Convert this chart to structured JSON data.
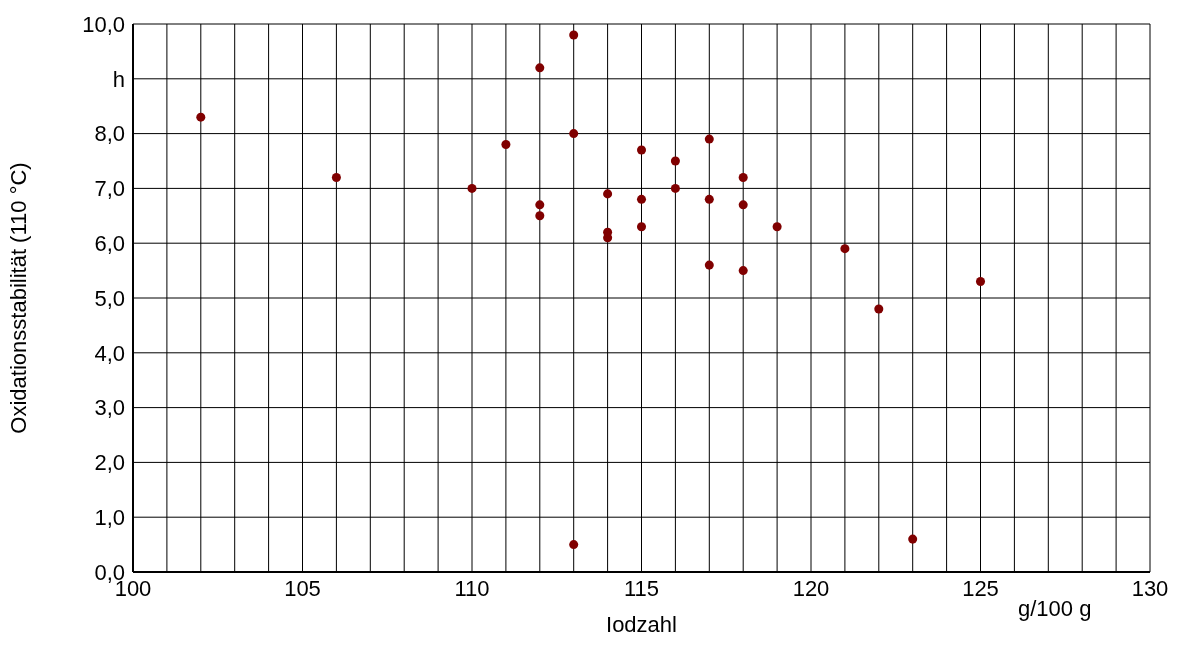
{
  "chart_data": {
    "type": "scatter",
    "xlabel": "Iodzahl",
    "ylabel": "Oxidationsstabilität (110 °C)",
    "x": [
      102,
      106,
      110,
      111,
      112,
      112,
      112,
      113,
      113,
      113,
      114,
      114,
      114,
      115,
      115,
      115,
      116,
      116,
      117,
      117,
      117,
      118,
      118,
      118,
      119,
      121,
      122,
      123,
      125
    ],
    "values": [
      8.3,
      7.2,
      7.0,
      7.8,
      9.2,
      6.7,
      6.5,
      9.8,
      8.0,
      0.5,
      6.9,
      6.2,
      6.1,
      7.7,
      6.8,
      6.3,
      7.5,
      7.0,
      7.9,
      6.8,
      5.6,
      7.2,
      6.7,
      5.5,
      6.3,
      5.9,
      4.8,
      0.6,
      5.3
    ],
    "color": "#800000",
    "marker": "circle",
    "xlim": [
      100,
      130
    ],
    "xticks": [
      100,
      {
        "value": 101,
        "label": null
      },
      {
        "value": 102,
        "label": null
      },
      {
        "value": 103,
        "label": null
      },
      {
        "value": 104,
        "label": null
      },
      105,
      {
        "value": 106,
        "label": null
      },
      {
        "value": 107,
        "label": null
      },
      {
        "value": 108,
        "label": null
      },
      {
        "value": 109,
        "label": null
      },
      110,
      {
        "value": 111,
        "label": null
      },
      {
        "value": 112,
        "label": null
      },
      {
        "value": 113,
        "label": null
      },
      {
        "value": 114,
        "label": null
      },
      115,
      {
        "value": 116,
        "label": null
      },
      {
        "value": 117,
        "label": null
      },
      {
        "value": 118,
        "label": null
      },
      {
        "value": 119,
        "label": null
      },
      120,
      {
        "value": 121,
        "label": null
      },
      {
        "value": 122,
        "label": null
      },
      {
        "value": 123,
        "label": null
      },
      {
        "value": 124,
        "label": null
      },
      125,
      {
        "value": 126,
        "label": null
      },
      {
        "value": 127,
        "label": null
      },
      {
        "value": 128,
        "label": null
      },
      {
        "value": 129,
        "label": null
      },
      130
    ],
    "ylim": [
      0,
      10
    ],
    "yticks": [
      {
        "value": 0,
        "label": "0,0"
      },
      {
        "value": 1,
        "label": "1,0"
      },
      {
        "value": 2,
        "label": "2,0"
      },
      {
        "value": 3,
        "label": "3,0"
      },
      {
        "value": 4,
        "label": "4,0"
      },
      {
        "value": 5,
        "label": "5,0"
      },
      {
        "value": 6,
        "label": "6,0"
      },
      {
        "value": 7,
        "label": "7,0"
      },
      {
        "value": 8,
        "label": "8,0"
      },
      {
        "value": 9,
        "label": "h"
      },
      {
        "value": 10,
        "label": "10,0"
      }
    ],
    "grid": true,
    "annotations": [
      "g/100 g"
    ]
  }
}
